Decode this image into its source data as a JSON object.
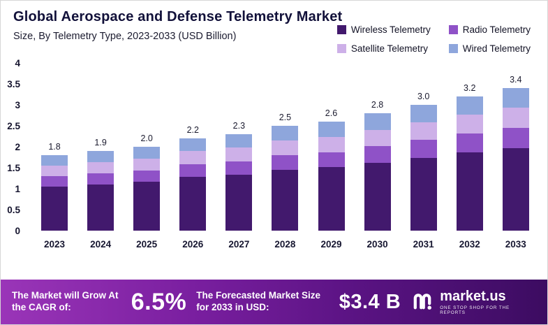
{
  "header": {
    "title": "Global Aerospace and Defense Telemetry Market",
    "subtitle": "Size, By Telemetry Type, 2023-2033 (USD Billion)"
  },
  "legend": [
    {
      "label": "Wireless Telemetry",
      "color": "#42196d"
    },
    {
      "label": "Radio Telemetry",
      "color": "#8f52c7"
    },
    {
      "label": "Satellite Telemetry",
      "color": "#cdb0e8"
    },
    {
      "label": "Wired Telemetry",
      "color": "#8ea6dc"
    }
  ],
  "chart_data": {
    "type": "bar",
    "stacked": true,
    "title": "Global Aerospace and Defense Telemetry Market Size, By Telemetry Type, 2023-2033 (USD Billion)",
    "categories": [
      "2023",
      "2024",
      "2025",
      "2026",
      "2027",
      "2028",
      "2029",
      "2030",
      "2031",
      "2032",
      "2033"
    ],
    "series": [
      {
        "name": "Wireless Telemetry",
        "color": "#42196d",
        "values": [
          1.05,
          1.1,
          1.16,
          1.28,
          1.33,
          1.45,
          1.51,
          1.62,
          1.74,
          1.86,
          1.97
        ]
      },
      {
        "name": "Radio Telemetry",
        "color": "#8f52c7",
        "values": [
          0.25,
          0.27,
          0.28,
          0.31,
          0.32,
          0.35,
          0.36,
          0.39,
          0.42,
          0.45,
          0.48
        ]
      },
      {
        "name": "Satellite Telemetry",
        "color": "#cdb0e8",
        "values": [
          0.25,
          0.27,
          0.28,
          0.31,
          0.33,
          0.35,
          0.37,
          0.39,
          0.42,
          0.45,
          0.48
        ]
      },
      {
        "name": "Wired Telemetry",
        "color": "#8ea6dc",
        "values": [
          0.25,
          0.26,
          0.28,
          0.3,
          0.32,
          0.35,
          0.36,
          0.4,
          0.42,
          0.44,
          0.47
        ]
      }
    ],
    "totals": [
      "1.8",
      "1.9",
      "2.0",
      "2.2",
      "2.3",
      "2.5",
      "2.6",
      "2.8",
      "3.0",
      "3.2",
      "3.4"
    ],
    "xlabel": "",
    "ylabel": "",
    "ylim": [
      0,
      4
    ],
    "yticks": [
      0,
      0.5,
      1,
      1.5,
      2,
      2.5,
      3,
      3.5,
      4
    ],
    "grid": false,
    "legend_position": "top-right"
  },
  "footer": {
    "cagr_label": "The Market will Grow At the CAGR of:",
    "cagr_value": "6.5%",
    "forecast_label": "The Forecasted Market Size for 2033 in USD:",
    "forecast_value": "$3.4 B",
    "brand": "market.us",
    "brand_tagline": "ONE STOP SHOP FOR THE REPORTS"
  }
}
